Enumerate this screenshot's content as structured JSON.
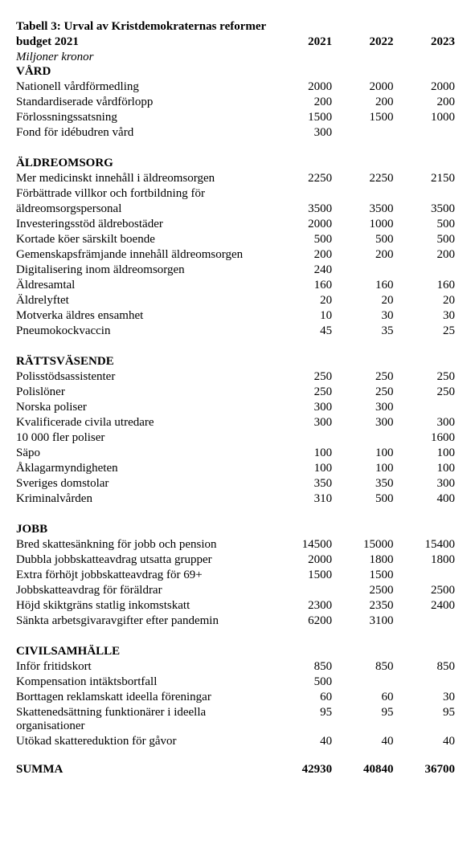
{
  "title_line1": "Tabell 3: Urval av Kristdemokraternas reformer",
  "title_line2": "budget 2021",
  "subtitle": "Miljoner kronor",
  "years": [
    "2021",
    "2022",
    "2023"
  ],
  "sections": [
    {
      "name": "VÅRD",
      "rows": [
        {
          "label": "Nationell vårdförmedling",
          "v": [
            "2000",
            "2000",
            "2000"
          ]
        },
        {
          "label": "Standardiserade vårdförlopp",
          "v": [
            "200",
            "200",
            "200"
          ]
        },
        {
          "label": "Förlossningssatsning",
          "v": [
            "1500",
            "1500",
            "1000"
          ]
        },
        {
          "label": "Fond för idébudren vård",
          "v": [
            "300",
            "",
            ""
          ]
        }
      ]
    },
    {
      "name": "ÄLDREOMSORG",
      "rows": [
        {
          "label": "Mer medicinskt innehåll i äldreomsorgen",
          "v": [
            "2250",
            "2250",
            "2150"
          ]
        },
        {
          "label": "Förbättrade villkor och fortbildning för",
          "v": [
            "",
            "",
            ""
          ]
        },
        {
          "label": "äldreomsorgspersonal",
          "v": [
            "3500",
            "3500",
            "3500"
          ]
        },
        {
          "label": "Investeringsstöd äldrebostäder",
          "v": [
            "2000",
            "1000",
            "500"
          ]
        },
        {
          "label": "Kortade köer särskilt boende",
          "v": [
            "500",
            "500",
            "500"
          ]
        },
        {
          "label": "Gemenskapsfrämjande innehåll äldreomsorgen",
          "v": [
            "200",
            "200",
            "200"
          ]
        },
        {
          "label": "Digitalisering inom äldreomsorgen",
          "v": [
            "240",
            "",
            ""
          ]
        },
        {
          "label": "Äldresamtal",
          "v": [
            "160",
            "160",
            "160"
          ]
        },
        {
          "label": "Äldrelyftet",
          "v": [
            "20",
            "20",
            "20"
          ]
        },
        {
          "label": "Motverka äldres ensamhet",
          "v": [
            "10",
            "30",
            "30"
          ]
        },
        {
          "label": "Pneumokockvaccin",
          "v": [
            "45",
            "35",
            "25"
          ]
        }
      ]
    },
    {
      "name": "RÄTTSVÄSENDE",
      "rows": [
        {
          "label": "Polisstödsassistenter",
          "v": [
            "250",
            "250",
            "250"
          ]
        },
        {
          "label": "Polislöner",
          "v": [
            "250",
            "250",
            "250"
          ]
        },
        {
          "label": "Norska poliser",
          "v": [
            "300",
            "300",
            ""
          ]
        },
        {
          "label": "Kvalificerade civila utredare",
          "v": [
            "300",
            "300",
            "300"
          ]
        },
        {
          "label": "10 000 fler poliser",
          "v": [
            "",
            "",
            "1600"
          ]
        },
        {
          "label": "Säpo",
          "v": [
            "100",
            "100",
            "100"
          ]
        },
        {
          "label": "Åklagarmyndigheten",
          "v": [
            "100",
            "100",
            "100"
          ]
        },
        {
          "label": "Sveriges domstolar",
          "v": [
            "350",
            "350",
            "300"
          ]
        },
        {
          "label": "Kriminalvården",
          "v": [
            "310",
            "500",
            "400"
          ]
        }
      ]
    },
    {
      "name": "JOBB",
      "rows": [
        {
          "label": "Bred skattesänkning för jobb och pension",
          "v": [
            "14500",
            "15000",
            "15400"
          ]
        },
        {
          "label": "Dubbla jobbskatteavdrag utsatta grupper",
          "v": [
            "2000",
            "1800",
            "1800"
          ]
        },
        {
          "label": "Extra förhöjt jobbskatteavdrag för 69+",
          "v": [
            "1500",
            "1500",
            ""
          ]
        },
        {
          "label": "Jobbskatteavdrag för föräldrar",
          "v": [
            "",
            "2500",
            "2500"
          ]
        },
        {
          "label": "Höjd skiktgräns statlig inkomstskatt",
          "v": [
            "2300",
            "2350",
            "2400"
          ]
        },
        {
          "label": "Sänkta arbetsgivaravgifter efter pandemin",
          "v": [
            "6200",
            "3100",
            ""
          ]
        }
      ]
    },
    {
      "name": "CIVILSAMHÄLLE",
      "rows": [
        {
          "label": "Inför fritidskort",
          "v": [
            "850",
            "850",
            "850"
          ]
        },
        {
          "label": "Kompensation intäktsbortfall",
          "v": [
            "500",
            "",
            ""
          ]
        },
        {
          "label": "Borttagen reklamskatt ideella föreningar",
          "v": [
            "60",
            "60",
            "30"
          ]
        },
        {
          "label": "Skattenedsättning funktionärer i ideella organisationer",
          "v": [
            "95",
            "95",
            "95"
          ]
        },
        {
          "label": "Utökad skattereduktion för gåvor",
          "v": [
            "40",
            "40",
            "40"
          ]
        }
      ]
    }
  ],
  "summa": {
    "label": "SUMMA",
    "v": [
      "42930",
      "40840",
      "36700"
    ]
  }
}
